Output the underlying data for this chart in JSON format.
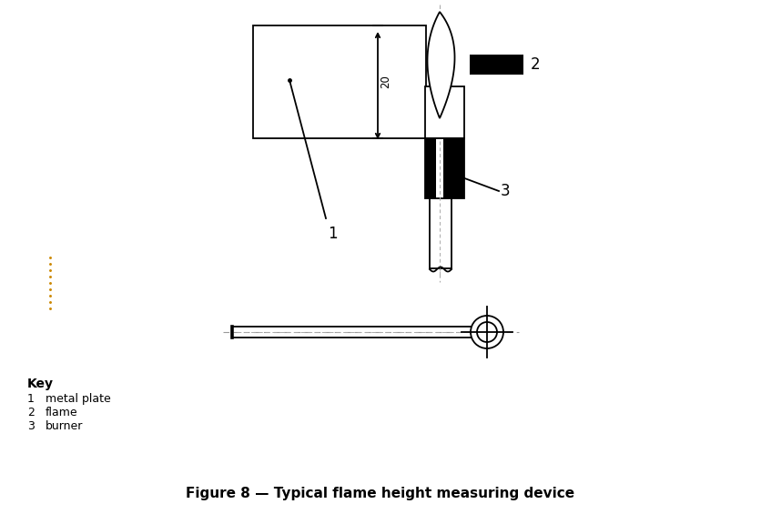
{
  "bg_color": "#ffffff",
  "line_color": "#000000",
  "title": "Figure 8 — Typical flame height measuring device",
  "title_fontsize": 11,
  "key_label": "Key",
  "key_items": [
    {
      "num": "1",
      "text": "metal plate"
    },
    {
      "num": "2",
      "text": "flame"
    },
    {
      "num": "3",
      "text": "burner"
    }
  ],
  "dim_text": "20",
  "dotted_color": "#cc8800"
}
